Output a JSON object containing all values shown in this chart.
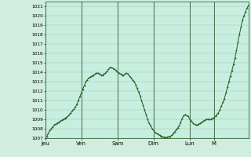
{
  "title": "",
  "xlabel": "",
  "ylabel": "",
  "ylim": [
    1007,
    1021.5
  ],
  "yticks": [
    1007,
    1008,
    1009,
    1010,
    1011,
    1012,
    1013,
    1014,
    1015,
    1016,
    1017,
    1018,
    1019,
    1020,
    1021
  ],
  "xtick_labels": [
    "Jeu",
    "Ven",
    "Sam",
    "Dim",
    "Lun",
    "M"
  ],
  "xtick_positions": [
    0,
    24,
    48,
    72,
    96,
    112
  ],
  "vline_positions": [
    0,
    24,
    48,
    72,
    96,
    112
  ],
  "background_color": "#d0ede0",
  "plot_bg_color": "#c8eee0",
  "grid_color": "#a0b8a8",
  "line_color": "#1a5e1a",
  "marker_color": "#1a5e1a",
  "y_values": [
    1007.0,
    1007.2,
    1007.5,
    1007.8,
    1008.0,
    1008.2,
    1008.4,
    1008.5,
    1008.6,
    1008.7,
    1008.8,
    1008.9,
    1009.0,
    1009.1,
    1009.2,
    1009.3,
    1009.5,
    1009.7,
    1009.9,
    1010.1,
    1010.3,
    1010.6,
    1011.0,
    1011.4,
    1011.8,
    1012.2,
    1012.6,
    1013.0,
    1013.2,
    1013.4,
    1013.5,
    1013.6,
    1013.7,
    1013.8,
    1013.9,
    1013.9,
    1013.8,
    1013.7,
    1013.7,
    1013.8,
    1013.9,
    1014.1,
    1014.3,
    1014.5,
    1014.5,
    1014.4,
    1014.3,
    1014.2,
    1014.0,
    1013.9,
    1013.8,
    1013.7,
    1013.7,
    1013.8,
    1013.9,
    1013.8,
    1013.6,
    1013.4,
    1013.2,
    1013.0,
    1012.7,
    1012.3,
    1011.9,
    1011.5,
    1011.0,
    1010.5,
    1010.0,
    1009.5,
    1009.0,
    1008.6,
    1008.3,
    1008.0,
    1007.8,
    1007.6,
    1007.5,
    1007.4,
    1007.3,
    1007.2,
    1007.15,
    1007.1,
    1007.1,
    1007.1,
    1007.15,
    1007.2,
    1007.3,
    1007.5,
    1007.7,
    1007.9,
    1008.1,
    1008.3,
    1008.7,
    1009.1,
    1009.4,
    1009.5,
    1009.4,
    1009.3,
    1009.0,
    1008.8,
    1008.6,
    1008.5,
    1008.4,
    1008.4,
    1008.5,
    1008.6,
    1008.7,
    1008.8,
    1008.9,
    1009.0,
    1009.0,
    1009.0,
    1009.0,
    1009.1,
    1009.2,
    1009.3,
    1009.5,
    1009.7,
    1010.0,
    1010.4,
    1010.8,
    1011.2,
    1011.8,
    1012.4,
    1013.0,
    1013.6,
    1014.2,
    1014.8,
    1015.5,
    1016.3,
    1017.2,
    1018.0,
    1018.8,
    1019.5,
    1020.0,
    1020.4,
    1020.8,
    1021.1
  ]
}
